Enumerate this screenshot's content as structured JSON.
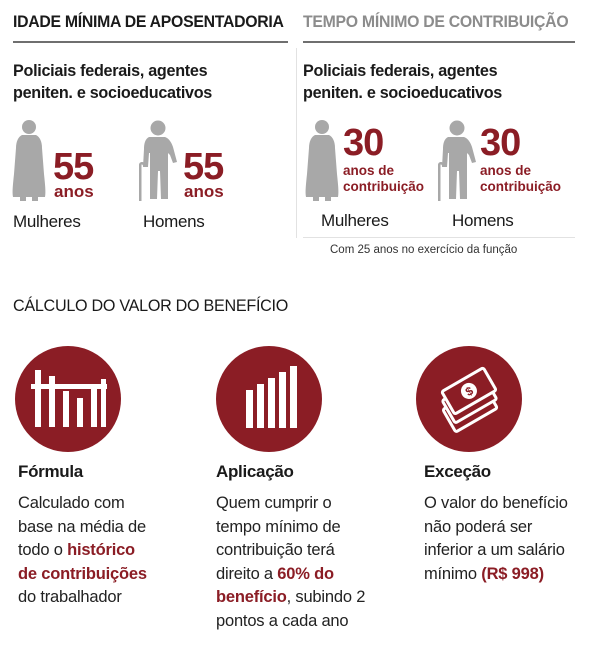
{
  "headers": {
    "left": "IDADE MÍNIMA DE APOSENTADORIA",
    "right": "TEMPO MÍNIMO DE CONTRIBUIÇÃO"
  },
  "left_group": {
    "title_line1": "Policiais federais, agentes",
    "title_line2": "peniten. e socioeducativos",
    "women": {
      "number": "55",
      "unit": "anos",
      "label": "Mulheres"
    },
    "men": {
      "number": "55",
      "unit": "anos",
      "label": "Homens"
    }
  },
  "right_group": {
    "title_line1": "Policiais federais, agentes",
    "title_line2": "peniten. e socioeducativos",
    "women": {
      "number": "30",
      "unit_line1": "anos de",
      "unit_line2": "contribuição",
      "label": "Mulheres"
    },
    "men": {
      "number": "30",
      "unit_line1": "anos de",
      "unit_line2": "contribuição",
      "label": "Homens"
    },
    "note": "Com 25 anos no exercício da função"
  },
  "section": {
    "title": "CÁLCULO DO VALOR DO BENEFÍCIO",
    "columns": [
      {
        "title": "Fórmula",
        "lines": [
          "Calculado com",
          "base na média de",
          "todo o ",
          "histórico",
          "de contribuições",
          "do trabalhador"
        ],
        "icon": "bar-chart-icon"
      },
      {
        "title": "Aplicação",
        "lines": [
          "Quem cumprir o",
          "tempo mínimo de",
          "contribuição terá",
          "direito a ",
          "60% do",
          "benefício",
          ", subindo 2",
          "pontos a cada ano"
        ],
        "icon": "rising-bars-icon"
      },
      {
        "title": "Exceção",
        "lines": [
          "O valor do benefício",
          "não poderá ser",
          "inferior a um salário",
          "mínimo ",
          "(R$ 998)"
        ],
        "icon": "money-icon"
      }
    ]
  },
  "colors": {
    "accent": "#8b1d25",
    "figure": "#a8a8a8",
    "muted_header": "#8c8c8c"
  }
}
